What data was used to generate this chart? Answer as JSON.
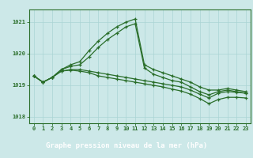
{
  "title": "Graphe pression niveau de la mer (hPa)",
  "hours": [
    0,
    1,
    2,
    3,
    4,
    5,
    6,
    7,
    8,
    9,
    10,
    11,
    12,
    13,
    14,
    15,
    16,
    17,
    18,
    19,
    20,
    21,
    22,
    23
  ],
  "line1": [
    1019.3,
    1019.1,
    1019.25,
    1019.5,
    1019.65,
    1019.75,
    1020.1,
    1020.4,
    1020.65,
    1020.85,
    1021.0,
    1021.1,
    1019.65,
    1019.5,
    1019.4,
    1019.3,
    1019.2,
    1019.1,
    1018.95,
    1018.85,
    1018.85,
    1018.9,
    1018.85,
    1018.8
  ],
  "line2": [
    1019.3,
    1019.1,
    1019.25,
    1019.5,
    1019.6,
    1019.65,
    1019.9,
    1020.2,
    1020.45,
    1020.65,
    1020.85,
    1020.95,
    1019.55,
    1019.35,
    1019.25,
    1019.15,
    1019.1,
    1018.95,
    1018.8,
    1018.7,
    1018.8,
    1018.85,
    1018.8,
    1018.75
  ],
  "line3": [
    1019.3,
    1019.1,
    1019.25,
    1019.45,
    1019.5,
    1019.5,
    1019.45,
    1019.4,
    1019.35,
    1019.3,
    1019.25,
    1019.2,
    1019.15,
    1019.1,
    1019.05,
    1019.0,
    1018.95,
    1018.85,
    1018.72,
    1018.6,
    1018.75,
    1018.8,
    1018.78,
    1018.75
  ],
  "line4": [
    1019.3,
    1019.1,
    1019.25,
    1019.45,
    1019.48,
    1019.45,
    1019.4,
    1019.3,
    1019.25,
    1019.2,
    1019.15,
    1019.1,
    1019.05,
    1019.0,
    1018.95,
    1018.88,
    1018.82,
    1018.72,
    1018.58,
    1018.42,
    1018.55,
    1018.62,
    1018.62,
    1018.6
  ],
  "ylim": [
    1017.8,
    1021.4
  ],
  "yticks": [
    1018,
    1019,
    1020,
    1021
  ],
  "line_color": "#2a6e2a",
  "bg_color": "#cce8e8",
  "grid_color": "#aad4d4",
  "title_bg": "#2a6e2a",
  "title_color": "#ffffff",
  "title_fontsize": 6.5,
  "tick_fontsize": 5.0,
  "marker_size": 3.0,
  "linewidth": 0.9
}
